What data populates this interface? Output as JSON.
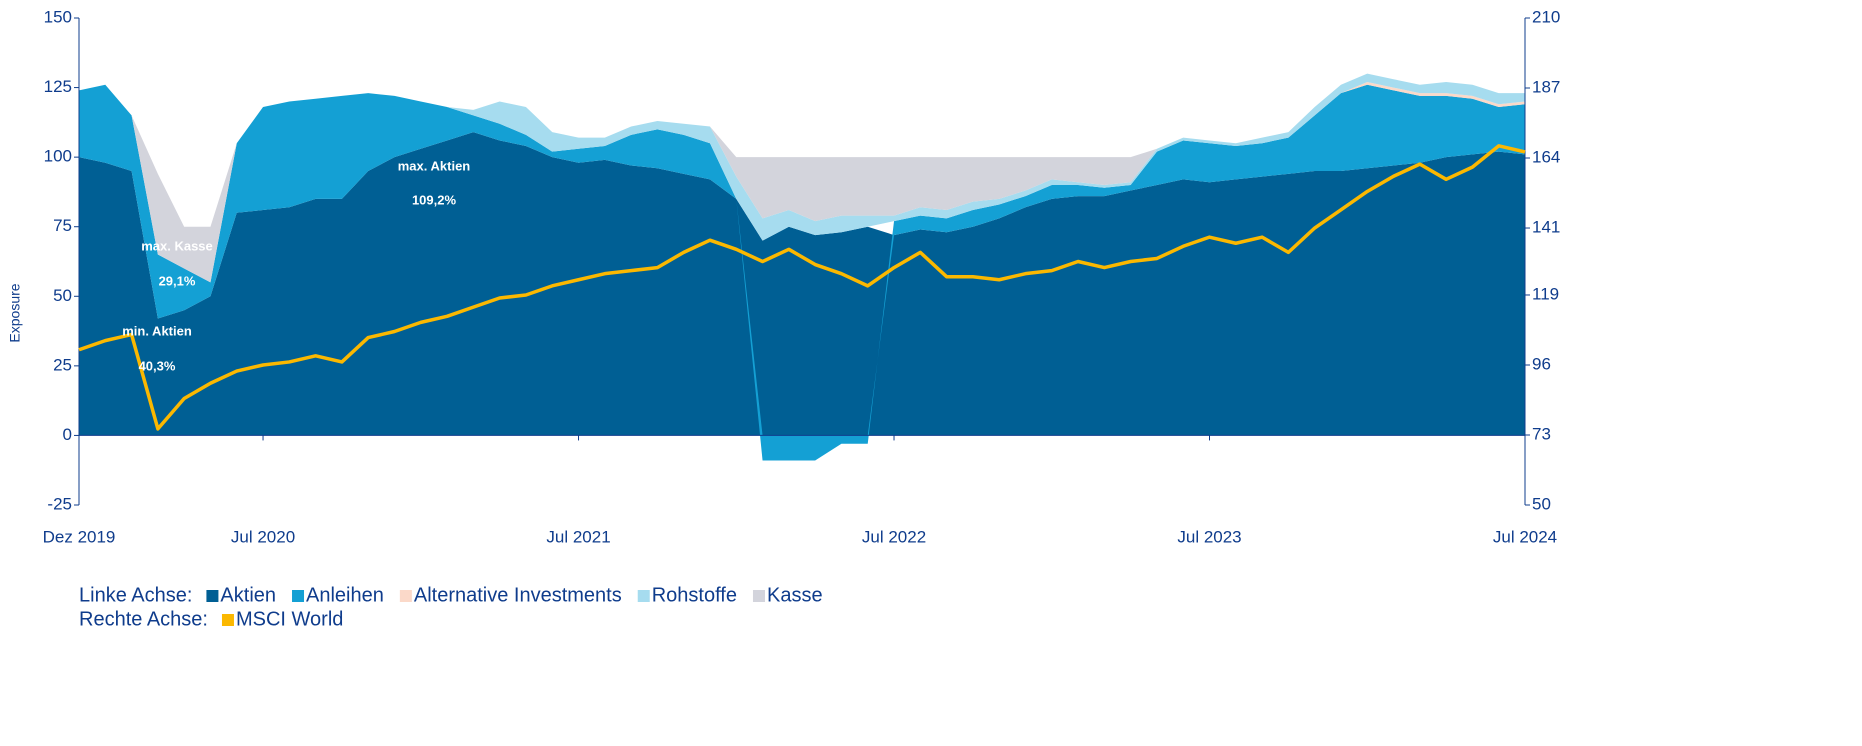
{
  "chart_data": {
    "type": "stacked_area_line",
    "y_label": "Exposure",
    "legend_left_label": "Linke Achse:",
    "legend_right_label": "Rechte Achse:",
    "categories": [
      "Dez 2019",
      null,
      null,
      null,
      null,
      null,
      null,
      "Jul 2020",
      null,
      null,
      null,
      null,
      null,
      null,
      null,
      null,
      null,
      null,
      null,
      "Jul 2021",
      null,
      null,
      null,
      null,
      null,
      null,
      null,
      null,
      null,
      null,
      null,
      "Jul 2022",
      null,
      null,
      null,
      null,
      null,
      null,
      null,
      null,
      null,
      null,
      null,
      "Jul 2023",
      null,
      null,
      null,
      null,
      null,
      null,
      null,
      null,
      null,
      null,
      null,
      "Jul 2024"
    ],
    "series": [
      {
        "name": "Aktien",
        "color": "#005f94",
        "values": [
          100,
          98,
          95,
          42,
          45,
          50,
          80,
          81,
          82,
          85,
          85,
          95,
          100,
          103,
          106,
          109,
          106,
          104,
          100,
          98,
          99,
          97,
          96,
          94,
          92,
          85,
          70,
          75,
          72,
          73,
          75,
          72,
          74,
          73,
          75,
          78,
          82,
          85,
          86,
          86,
          88,
          90,
          92,
          91,
          92,
          93,
          94,
          95,
          95,
          96,
          97,
          98,
          100,
          101,
          102,
          101
        ]
      },
      {
        "name": "Anleihen",
        "color": "#14a0d4",
        "values": [
          24,
          28,
          20,
          23,
          15,
          5,
          25,
          37,
          38,
          36,
          37,
          28,
          22,
          17,
          12,
          6,
          6,
          4,
          2,
          5,
          5,
          11,
          14,
          14,
          13,
          0,
          -9,
          -9,
          -9,
          -3,
          -3,
          5,
          5,
          5,
          6,
          5,
          4,
          5,
          4,
          3,
          2,
          12,
          14,
          14,
          12,
          12,
          13,
          20,
          28,
          30,
          27,
          24,
          22,
          20,
          16,
          18
        ]
      },
      {
        "name": "Alternative Investments",
        "color": "#fbd9c9",
        "values": [
          0,
          0,
          0,
          0,
          0,
          0,
          0,
          0,
          0,
          0,
          0,
          0,
          0,
          0,
          0,
          0,
          0,
          0,
          0,
          0,
          0,
          0,
          0,
          0,
          0,
          0,
          0,
          0,
          0,
          0,
          0,
          0,
          0,
          0,
          0,
          0,
          0,
          0,
          0,
          0,
          0,
          0,
          0,
          0,
          0,
          0,
          0,
          0,
          0,
          1,
          1,
          1,
          1,
          1,
          1,
          1
        ]
      },
      {
        "name": "Rohstoffe",
        "color": "#a6dcef",
        "values": [
          0,
          0,
          0,
          0,
          0,
          0,
          0,
          0,
          0,
          0,
          0,
          0,
          0,
          0,
          0,
          2,
          8,
          10,
          7,
          4,
          3,
          3,
          3,
          4,
          6,
          8,
          8,
          6,
          5,
          6,
          4,
          2,
          3,
          3,
          3,
          2,
          2,
          2,
          1,
          1,
          1,
          1,
          1,
          1,
          1,
          2,
          2,
          3,
          3,
          3,
          3,
          3,
          4,
          4,
          4,
          3
        ]
      },
      {
        "name": "Kasse",
        "color": "#d3d4dc",
        "values": [
          0,
          0,
          0,
          29,
          15,
          20,
          0,
          0,
          0,
          0,
          0,
          0,
          0,
          0,
          0,
          0,
          0,
          0,
          0,
          0,
          0,
          0,
          0,
          0,
          0,
          7,
          22,
          19,
          23,
          21,
          21,
          21,
          18,
          19,
          16,
          15,
          12,
          8,
          9,
          10,
          9,
          0,
          0,
          0,
          0,
          0,
          0,
          0,
          0,
          0,
          0,
          0,
          0,
          0,
          0,
          0
        ]
      },
      {
        "name": "MSCI World",
        "color": "#fbb800",
        "axis": "y2",
        "values": [
          101,
          104,
          106,
          75,
          85,
          90,
          94,
          96,
          97,
          99,
          97,
          105,
          107,
          110,
          112,
          115,
          118,
          119,
          122,
          124,
          126,
          127,
          128,
          133,
          137,
          134,
          130,
          134,
          129,
          126,
          122,
          128,
          133,
          125,
          125,
          124,
          126,
          127,
          130,
          128,
          130,
          131,
          135,
          138,
          136,
          138,
          133,
          141,
          147,
          153,
          158,
          162,
          157,
          161,
          168,
          166
        ]
      }
    ],
    "annotations": [
      {
        "text": "max. Aktien"
      },
      {
        "text": "109,2%"
      },
      {
        "text": "max. Kasse"
      },
      {
        "text": "29,1%"
      },
      {
        "text": "min. Aktien"
      },
      {
        "text": "40,3%"
      }
    ],
    "ylim": [
      -25,
      150
    ],
    "yticks": [
      -25,
      0,
      25,
      50,
      75,
      100,
      125,
      150
    ],
    "y2lim": [
      50,
      210
    ],
    "y2ticks": [
      50,
      73,
      96,
      119,
      141,
      164,
      187,
      210
    ]
  }
}
